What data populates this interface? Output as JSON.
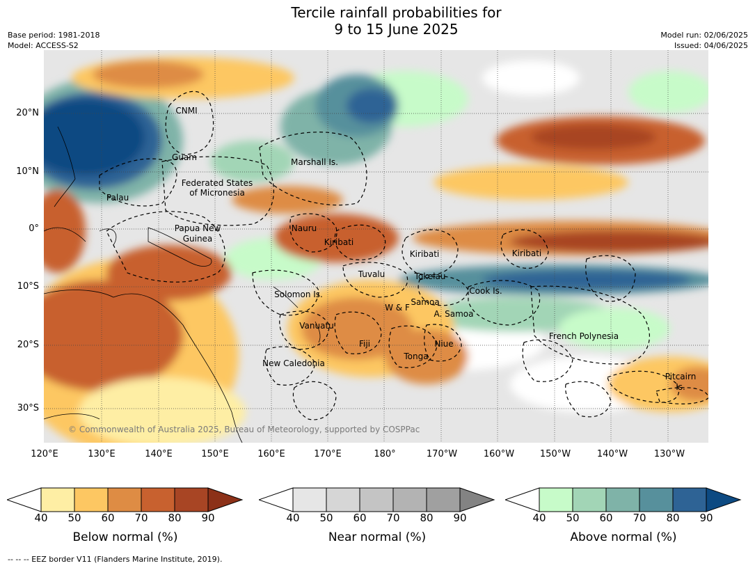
{
  "title_line1": "Tercile rainfall probabilities for",
  "title_line2": "9 to 15 June 2025",
  "base_period": "Base period: 1981-2018",
  "model": "Model: ACCESS-S2",
  "model_run": "Model run: 02/06/2025",
  "issued": "Issued: 04/06/2025",
  "lat_ticks": [
    "20°N",
    "10°N",
    "0°",
    "10°S",
    "20°S",
    "30°S"
  ],
  "lon_ticks": [
    "120°E",
    "130°E",
    "140°E",
    "150°E",
    "160°E",
    "170°E",
    "180°",
    "170°W",
    "160°W",
    "150°W",
    "140°W",
    "130°W"
  ],
  "regions": [
    "CNMI",
    "Guam",
    "Marshall Is.",
    "Federated States",
    "of Micronesia",
    "Palau",
    "Papua New",
    "Guinea",
    "Nauru",
    "Kiribati",
    "Kiribati",
    "Kiribati",
    "Tuvalu",
    "Tokelau",
    "Cook Is.",
    "Solomon Is.",
    "W & F",
    "Samoa",
    "A. Samoa",
    "Vanuatu",
    "Fiji",
    "Niue",
    "Tonga",
    "French Polynesia",
    "New Caledonia",
    "Pitcairn",
    "Is."
  ],
  "copyright": "© Commonwealth of Australia 2025, Bureau of Meteorology, supported by COSPPac",
  "colorbars": [
    {
      "title": "Below normal (%)",
      "colors": [
        "#ffffff",
        "#feeea4",
        "#fdc762",
        "#de8c44",
        "#c8612f",
        "#a84524",
        "#8c3118"
      ],
      "ticks": [
        "40",
        "50",
        "60",
        "70",
        "80",
        "90"
      ]
    },
    {
      "title": "Near normal (%)",
      "colors": [
        "#ffffff",
        "#e6e6e6",
        "#d6d6d6",
        "#c4c4c4",
        "#b3b3b3",
        "#a0a0a0",
        "#838383"
      ],
      "ticks": [
        "40",
        "50",
        "60",
        "70",
        "80",
        "90"
      ]
    },
    {
      "title": "Above normal (%)",
      "colors": [
        "#ffffff",
        "#c7fbc9",
        "#a2d5b6",
        "#7fb3a8",
        "#57909c",
        "#2e6395",
        "#0d4a82"
      ],
      "ticks": [
        "40",
        "50",
        "60",
        "70",
        "80",
        "90"
      ]
    }
  ],
  "eez_note": "--  --  -- EEZ border V11 (Flanders Marine Institute, 2019)."
}
